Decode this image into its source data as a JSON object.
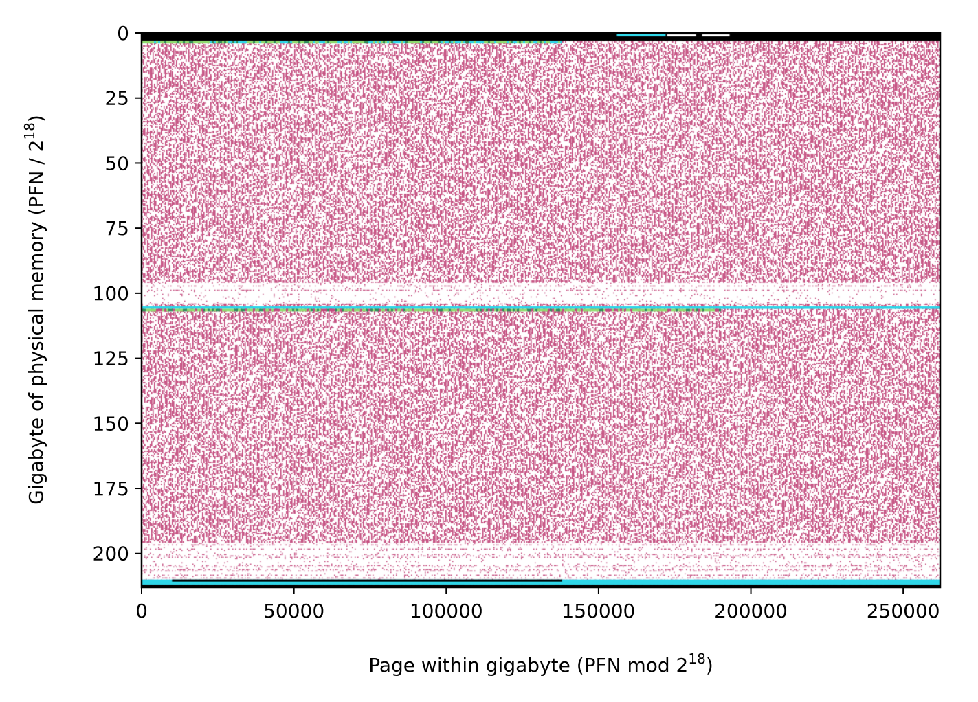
{
  "chart_data": {
    "type": "heatmap",
    "xlabel": "Page within gigabyte (PFN mod 2",
    "xlabel_sup": "18",
    "xlabel_end": ")",
    "ylabel": "Gigabyte of physical memory (PFN / 2",
    "ylabel_sup": "18",
    "ylabel_end": ")",
    "xlim": [
      0,
      262144
    ],
    "ylim": [
      213,
      0
    ],
    "x_ticks": [
      0,
      50000,
      100000,
      150000,
      200000,
      250000
    ],
    "x_tick_labels": [
      "0",
      "50000",
      "100000",
      "150000",
      "200000",
      "250000"
    ],
    "y_ticks": [
      0,
      25,
      50,
      75,
      100,
      125,
      150,
      175,
      200
    ],
    "y_tick_labels": [
      "0",
      "25",
      "50",
      "75",
      "100",
      "125",
      "150",
      "175",
      "200"
    ],
    "grid": false,
    "legend": "none",
    "colors": {
      "scattered": "#c2467a",
      "free": "#ffffff",
      "light_green": "#8fdc6e",
      "dark_green": "#2e8b57",
      "cyan": "#2fd6e8",
      "black": "#000000"
    },
    "bands": [
      {
        "gb_start": 0,
        "gb_end": 3,
        "fill": "black",
        "note_cyan_from": 156000,
        "note_cyan_to": 172000
      },
      {
        "gb_start": 3,
        "gb_end": 4,
        "fill": "light_green_mixed",
        "x_to": 138000
      },
      {
        "gb_start": 96,
        "gb_end": 104,
        "fill": "sparse"
      },
      {
        "gb_start": 105,
        "gb_end": 106,
        "fill": "cyan"
      },
      {
        "gb_start": 106,
        "gb_end": 107,
        "fill": "green_mixed"
      },
      {
        "gb_start": 196,
        "gb_end": 210,
        "fill": "sparse"
      },
      {
        "gb_start": 210,
        "gb_end": 212,
        "fill": "cyan_black"
      },
      {
        "gb_start": 212,
        "gb_end": 213,
        "fill": "black"
      }
    ]
  }
}
